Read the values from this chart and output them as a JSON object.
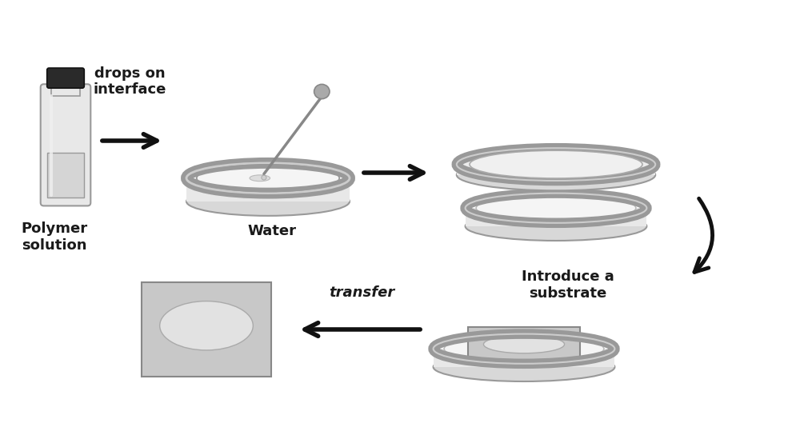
{
  "bg_color": "#ffffff",
  "text_color": "#1a1a1a",
  "labels": {
    "polymer": "Polymer\nsolution",
    "water": "Water",
    "introduce": "Introduce a\nsubstrate",
    "transfer": "transfer",
    "drops": "drops on\ninterface"
  },
  "fontsizes": {
    "main": 13,
    "transfer_italic": 13
  },
  "colors": {
    "dish_outer_fill": "#d8d8d8",
    "dish_outer_edge": "#999999",
    "dish_rim_fill": "#e8e8e8",
    "dish_inner_fill": "#f0f0f0",
    "dish_inner_edge": "#aaaaaa",
    "dish_top_ellipse_fill": "#ececec",
    "dish_top_ellipse_edge": "#999999",
    "water_fill": "#f5f5f5",
    "water_edge": "#bbbbbb",
    "bottle_body": "#e8e8e8",
    "bottle_cap": "#2a2a2a",
    "bottle_edge": "#999999",
    "bottle_liquid": "#d5d5d5",
    "substrate_fill": "#c8c8c8",
    "substrate_edge": "#888888",
    "film_fill": "#e2e2e2",
    "film_edge": "#aaaaaa",
    "arrow": "#111111",
    "pipette": "#888888",
    "pipette_bulb": "#aaaaaa"
  }
}
